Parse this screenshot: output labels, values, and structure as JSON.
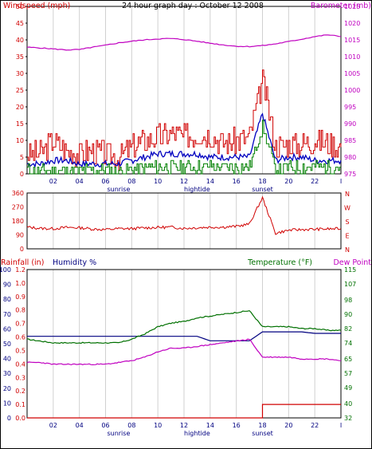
{
  "chart_data": [
    {
      "type": "line",
      "title": "24 hour graph day : October 12 2008",
      "y_left_label": "Windspeed (mph)",
      "y_right_label": "Barometer (mb)",
      "y_left_ticks": [
        0,
        5,
        10,
        15,
        20,
        25,
        30,
        35,
        40,
        45,
        50
      ],
      "y_right_ticks": [
        975,
        980,
        985,
        990,
        995,
        1000,
        1005,
        1010,
        1015,
        1020,
        1025
      ],
      "ylim_left": [
        0,
        50
      ],
      "ylim_right": [
        975,
        1025
      ],
      "x_ticks": [
        "02",
        "04",
        "06",
        "08",
        "10",
        "12",
        "14",
        "16",
        "18",
        "20",
        "22"
      ],
      "x_events": [
        "sunrise",
        "hightide",
        "sunset"
      ],
      "series": [
        {
          "values_hourly_gust": [
            6,
            6,
            10,
            7,
            6,
            7,
            6,
            5,
            8,
            10,
            11,
            12,
            11,
            12,
            12,
            9,
            10,
            11,
            28,
            8,
            9,
            9,
            10,
            9,
            8
          ]
        },
        {
          "values_hourly_avg": [
            3,
            3,
            4,
            4,
            3,
            3,
            3,
            3,
            4,
            5,
            6,
            6,
            6,
            6,
            5,
            5,
            5,
            5,
            18,
            4,
            5,
            5,
            4,
            4,
            4
          ]
        },
        {
          "values_hourly_low": [
            1,
            1,
            1,
            1,
            1,
            1,
            1,
            1,
            1,
            2,
            2,
            2,
            2,
            2,
            2,
            2,
            2,
            2,
            14,
            1,
            2,
            2,
            2,
            2,
            2
          ]
        },
        {
          "values_hourly_baro": [
            1012.8,
            1012.6,
            1012.3,
            1012.0,
            1012.1,
            1012.8,
            1013.4,
            1014.1,
            1014.6,
            1015.0,
            1015.3,
            1015.4,
            1015.1,
            1014.6,
            1014.0,
            1013.5,
            1013.1,
            1013.0,
            1013.3,
            1013.8,
            1014.5,
            1015.2,
            1016.0,
            1016.5,
            1016.0
          ]
        }
      ]
    },
    {
      "type": "line",
      "y_left_ticks": [
        0,
        90,
        180,
        270,
        360
      ],
      "y_right_labels": [
        "N",
        "W",
        "S",
        "E",
        "N"
      ],
      "ylim": [
        0,
        360
      ],
      "series": [
        {
          "values_hourly_dir": [
            140,
            132,
            130,
            138,
            136,
            128,
            124,
            130,
            130,
            135,
            138,
            140,
            132,
            136,
            140,
            140,
            145,
            160,
            330,
            100,
            120,
            124,
            126,
            128,
            130
          ]
        }
      ]
    },
    {
      "type": "line",
      "y_left_label_rain": "Rainfall (in)",
      "y_left_label_humidity": "Humidity %",
      "y_right_label_temp": "Temperature (°F)",
      "y_right_label_dew": "Dew Point",
      "rain_ticks": [
        "0.0",
        "0.1",
        "0.2",
        "0.3",
        "0.4",
        "0.5",
        "0.6",
        "0.7",
        "0.8",
        "0.9",
        "1.0",
        "1.2"
      ],
      "humidity_ticks": [
        0,
        10,
        20,
        30,
        40,
        50,
        60,
        70,
        80,
        90,
        100
      ],
      "temp_ticks": [
        32,
        40,
        49,
        57,
        65,
        74,
        82,
        90,
        98,
        107,
        115
      ],
      "x_ticks": [
        "02",
        "04",
        "06",
        "08",
        "10",
        "12",
        "14",
        "16",
        "18",
        "20",
        "22"
      ],
      "x_events": [
        "sunrise",
        "hightide",
        "sunset"
      ],
      "series": [
        {
          "humidity_pct_hourly": [
            55,
            55,
            55,
            55,
            55,
            55,
            55,
            55,
            55,
            55,
            55,
            55,
            55,
            55,
            52,
            52,
            52,
            52,
            58,
            58,
            58,
            58,
            57,
            57,
            57
          ]
        },
        {
          "temp_f_hourly": [
            76,
            75,
            74,
            74,
            74,
            74,
            74,
            74,
            76,
            79,
            83,
            85,
            86,
            88,
            89,
            90,
            91,
            92,
            83,
            83,
            83,
            82,
            82,
            81,
            81
          ]
        },
        {
          "dew_f_hourly": [
            63,
            63,
            62,
            62,
            62,
            62,
            62,
            63,
            64,
            66,
            69,
            71,
            71,
            72,
            73,
            74,
            75,
            76,
            66,
            66,
            66,
            65,
            65,
            65,
            64
          ]
        },
        {
          "rain_in_hourly": [
            0,
            0,
            0,
            0,
            0,
            0,
            0,
            0,
            0,
            0,
            0,
            0,
            0,
            0,
            0,
            0,
            0,
            0,
            0.1,
            0.1,
            0.1,
            0.1,
            0.1,
            0.1,
            0.1
          ]
        }
      ]
    }
  ]
}
